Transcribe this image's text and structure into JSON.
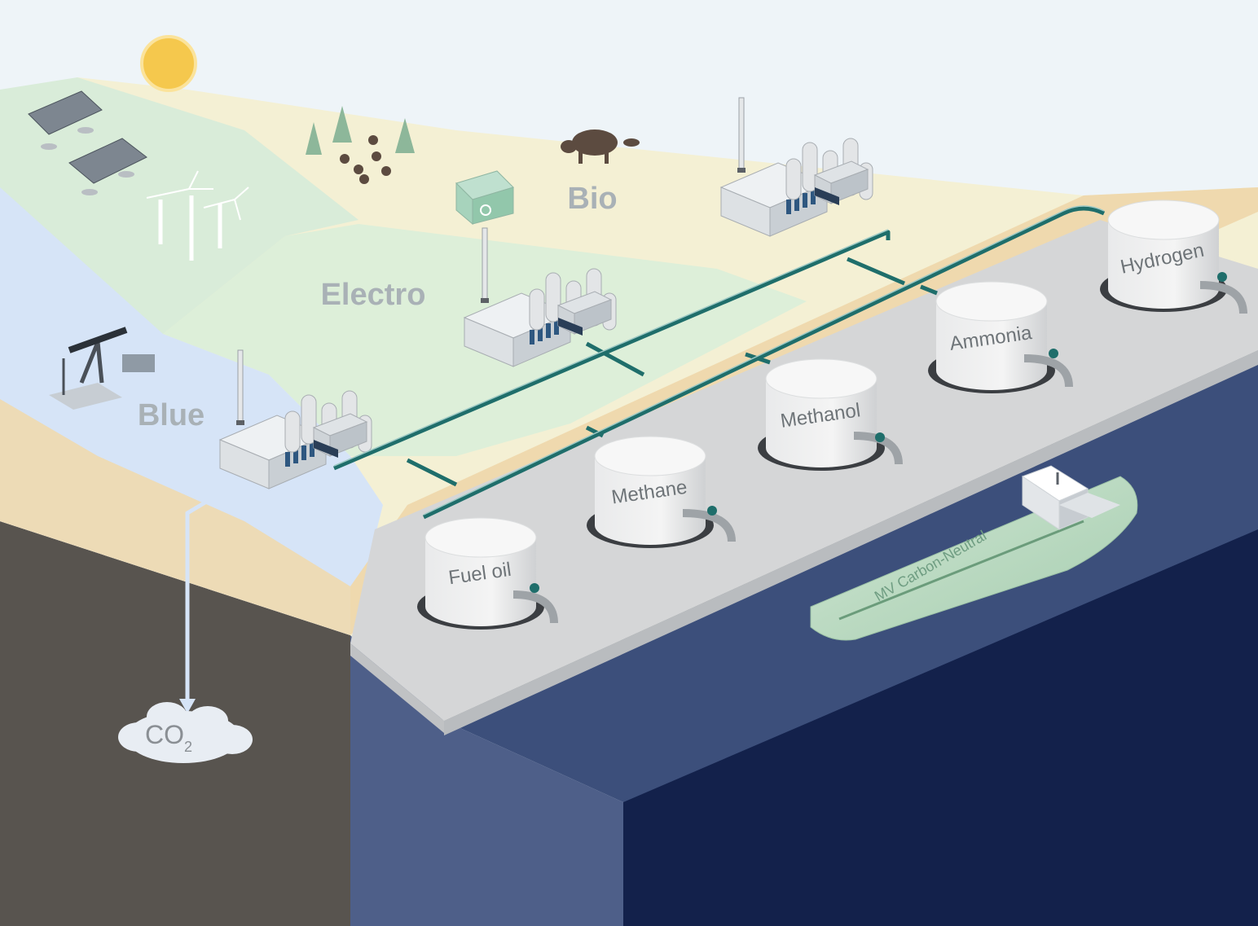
{
  "regions": {
    "bio": "Bio",
    "electro": "Electro",
    "blue": "Blue"
  },
  "tanks": [
    "Fuel oil",
    "Methane",
    "Methanol",
    "Ammonia",
    "Hydrogen"
  ],
  "ship": {
    "name": "MV Carbon-Neutral"
  },
  "co2": {
    "main": "CO",
    "subscript": "2"
  },
  "colors": {
    "sky": "#eef4f8",
    "land_green": "#d9ecd9",
    "land_cream": "#f4f0d4",
    "land_blue": "#d6e4f7",
    "sand": "#efd9ae",
    "platform": "#d5d6d7",
    "sea_top": "#3c4f7b",
    "sea_deep": "#13214b",
    "underground": "#58544f",
    "pipe": "#1f6e6b",
    "sun": "#f5c84d",
    "ship_hull": "#bfddc4"
  },
  "icons": [
    "sun-icon",
    "solar-panel-icon",
    "wind-turbine-icon",
    "tree-icon",
    "cow-icon",
    "recycle-bin-icon",
    "oil-pump-icon",
    "factory-icon",
    "storage-tank-icon",
    "valve-icon",
    "ship-icon",
    "co2-cloud-icon",
    "arrow-down-icon"
  ]
}
